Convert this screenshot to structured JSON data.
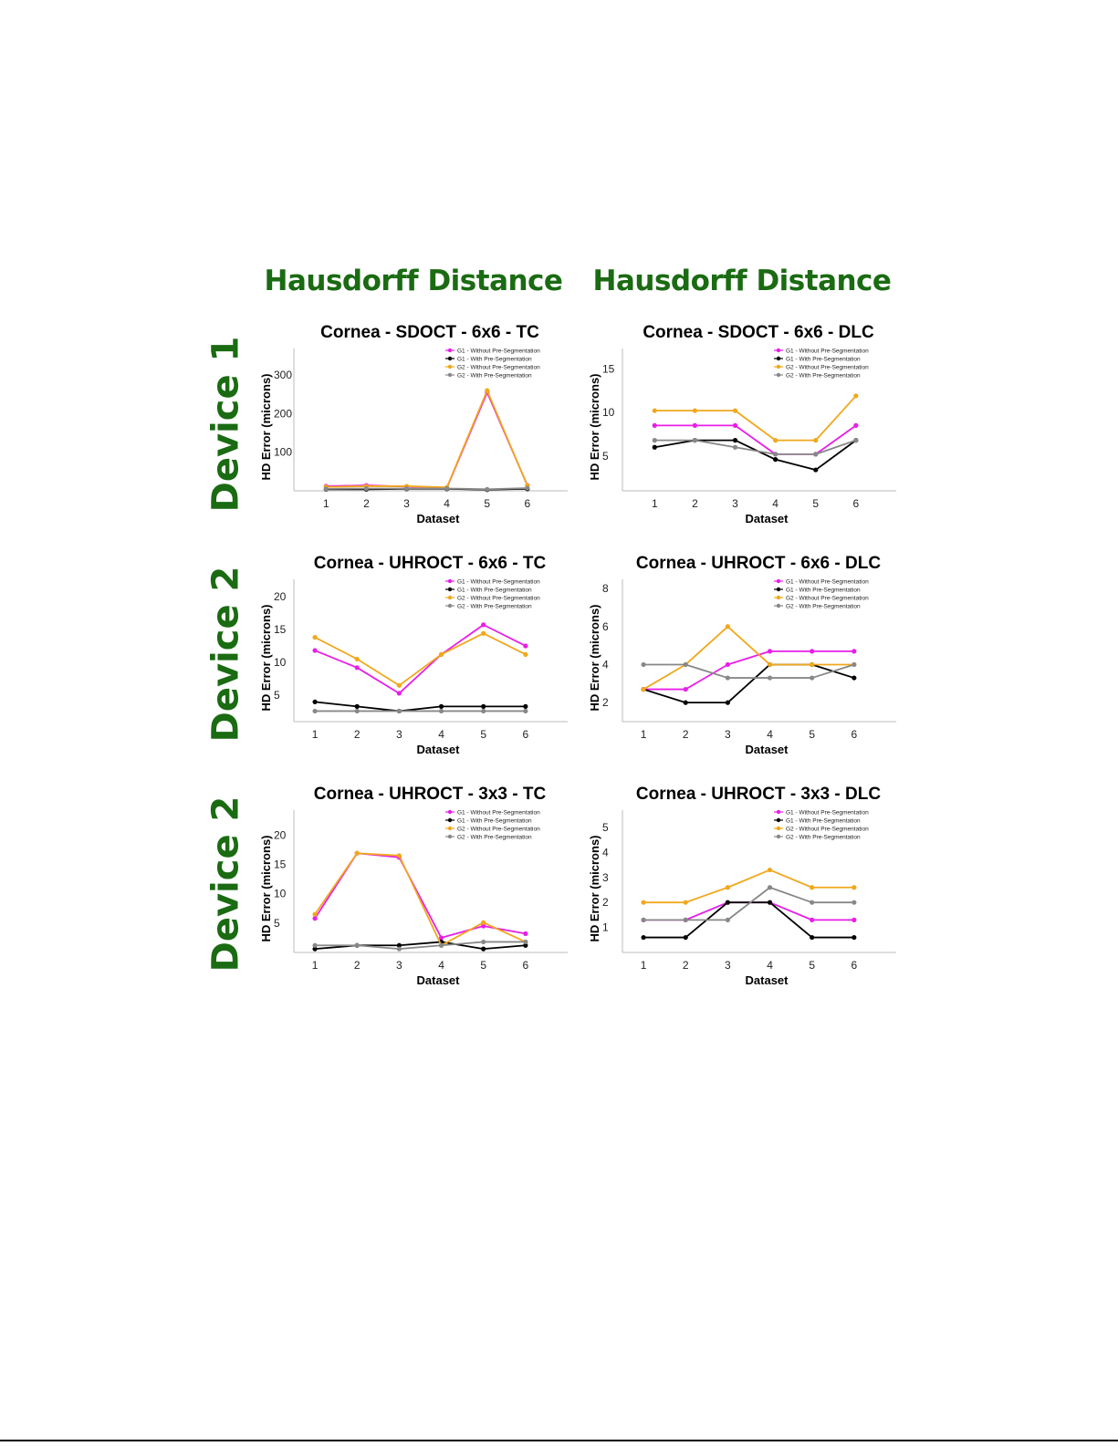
{
  "headings": {
    "left": "Hausdorff Distance",
    "right": "Hausdorff Distance"
  },
  "row_labels": [
    "Device 1",
    "Device 2",
    "Device 2"
  ],
  "colors": {
    "heading": "#1a6b12",
    "g1_without": "#e81ee8",
    "g1_with": "#000000",
    "g2_without": "#f0a81c",
    "g2_with": "#888888"
  },
  "chart_data": [
    {
      "type": "line",
      "title": "Cornea - SDOCT - 6x6 - TC",
      "xlabel": "Dataset",
      "ylabel": "HD Error (microns)",
      "categories": [
        "1",
        "2",
        "3",
        "4",
        "5",
        "6"
      ],
      "xlim": [
        0.2,
        7.0
      ],
      "ylim": [
        0,
        350
      ],
      "yticks": [
        100,
        200,
        300
      ],
      "legend": "top-right",
      "series": [
        {
          "name": "G1 - Without Pre-Segmentation",
          "values": [
            12,
            14,
            11,
            8,
            255,
            14
          ]
        },
        {
          "name": "G1 - With Pre-Segmentation",
          "values": [
            4,
            4,
            5,
            5,
            3,
            5
          ]
        },
        {
          "name": "G2 - Without Pre-Segmentation",
          "values": [
            10,
            12,
            12,
            9,
            260,
            13
          ]
        },
        {
          "name": "G2 - With Pre-Segmentation",
          "values": [
            5,
            6,
            6,
            6,
            4,
            7
          ]
        }
      ]
    },
    {
      "type": "line",
      "title": "Cornea - SDOCT - 6x6 - DLC",
      "xlabel": "Dataset",
      "ylabel": "HD Error (microns)",
      "categories": [
        "1",
        "2",
        "3",
        "4",
        "5",
        "6"
      ],
      "xlim": [
        0.2,
        7.0
      ],
      "ylim": [
        1,
        16.5
      ],
      "yticks": [
        5,
        10,
        15
      ],
      "legend": "top-right",
      "series": [
        {
          "name": "G1 - Without Pre-Segmentation",
          "values": [
            8.5,
            8.5,
            8.5,
            5.2,
            5.2,
            8.5
          ]
        },
        {
          "name": "G1 - With Pre-Segmentation",
          "values": [
            6.0,
            6.8,
            6.8,
            4.6,
            3.4,
            6.8
          ]
        },
        {
          "name": "G2 - Without Pre-Segmentation",
          "values": [
            10.2,
            10.2,
            10.2,
            6.8,
            6.8,
            11.9
          ]
        },
        {
          "name": "G2 - With Pre-Segmentation",
          "values": [
            6.8,
            6.8,
            6.0,
            5.2,
            5.2,
            6.8
          ]
        }
      ]
    },
    {
      "type": "line",
      "title": "Cornea - UHROCT - 6x6 - TC",
      "xlabel": "Dataset",
      "ylabel": "HD Error (microns)",
      "categories": [
        "1",
        "2",
        "3",
        "4",
        "5",
        "6"
      ],
      "xlim": [
        0.5,
        7.0
      ],
      "ylim": [
        1,
        21.5
      ],
      "yticks": [
        5,
        10,
        15,
        20
      ],
      "legend": "top-right",
      "series": [
        {
          "name": "G1 - Without Pre-Segmentation",
          "values": [
            11.8,
            9.2,
            5.3,
            11.2,
            15.7,
            12.5
          ]
        },
        {
          "name": "G1 - With Pre-Segmentation",
          "values": [
            4.0,
            3.3,
            2.6,
            3.3,
            3.3,
            3.3
          ]
        },
        {
          "name": "G2 - Without Pre-Segmentation",
          "values": [
            13.8,
            10.5,
            6.5,
            11.2,
            14.4,
            11.2
          ]
        },
        {
          "name": "G2 - With Pre-Segmentation",
          "values": [
            2.6,
            2.6,
            2.6,
            2.6,
            2.6,
            2.6
          ]
        }
      ]
    },
    {
      "type": "line",
      "title": "Cornea - UHROCT - 6x6 - DLC",
      "xlabel": "Dataset",
      "ylabel": "HD Error (microns)",
      "categories": [
        "1",
        "2",
        "3",
        "4",
        "5",
        "6"
      ],
      "xlim": [
        0.5,
        7.0
      ],
      "ylim": [
        1,
        8.1
      ],
      "yticks": [
        2,
        4,
        6,
        8
      ],
      "legend": "top-right",
      "series": [
        {
          "name": "G1 - Without Pre-Segmentation",
          "values": [
            2.7,
            2.7,
            4.0,
            4.7,
            4.7,
            4.7
          ]
        },
        {
          "name": "G1 - With Pre-Segmentation",
          "values": [
            2.7,
            2.0,
            2.0,
            4.0,
            4.0,
            3.3
          ]
        },
        {
          "name": "G2 - Without Pre-Segmentation",
          "values": [
            2.7,
            4.0,
            6.0,
            4.0,
            4.0,
            4.0
          ]
        },
        {
          "name": "G2 - With Pre-Segmentation",
          "values": [
            4.0,
            4.0,
            3.3,
            3.3,
            3.3,
            4.0
          ]
        }
      ]
    },
    {
      "type": "line",
      "title": "Cornea - UHROCT - 3x3 - TC",
      "xlabel": "Dataset",
      "ylabel": "HD Error (microns)",
      "categories": [
        "1",
        "2",
        "3",
        "4",
        "5",
        "6"
      ],
      "xlim": [
        0.5,
        7.0
      ],
      "ylim": [
        0,
        23
      ],
      "yticks": [
        5,
        10,
        15,
        20
      ],
      "legend": "top-right",
      "series": [
        {
          "name": "G1 - Without Pre-Segmentation",
          "values": [
            5.8,
            16.9,
            16.2,
            2.5,
            4.5,
            3.2
          ]
        },
        {
          "name": "G1 - With Pre-Segmentation",
          "values": [
            0.6,
            1.2,
            1.2,
            1.8,
            0.6,
            1.2
          ]
        },
        {
          "name": "G2 - Without Pre-Segmentation",
          "values": [
            6.5,
            16.9,
            16.5,
            1.2,
            5.1,
            1.8
          ]
        },
        {
          "name": "G2 - With Pre-Segmentation",
          "values": [
            1.2,
            1.2,
            0.6,
            1.2,
            1.8,
            1.8
          ]
        }
      ]
    },
    {
      "type": "line",
      "title": "Cornea - UHROCT - 3x3 - DLC",
      "xlabel": "Dataset",
      "ylabel": "HD Error (microns)",
      "categories": [
        "1",
        "2",
        "3",
        "4",
        "5",
        "6"
      ],
      "xlim": [
        0.5,
        7.0
      ],
      "ylim": [
        0,
        5.4
      ],
      "yticks": [
        1,
        2,
        3,
        4,
        5
      ],
      "legend": "top-right",
      "series": [
        {
          "name": "G1 - Without Pre-Segmentation",
          "values": [
            1.3,
            1.3,
            2.0,
            2.0,
            1.3,
            1.3
          ]
        },
        {
          "name": "G1 - With Pre-Segmentation",
          "values": [
            0.6,
            0.6,
            2.0,
            2.0,
            0.6,
            0.6
          ]
        },
        {
          "name": "G2 - Without Pre-Segmentation",
          "values": [
            2.0,
            2.0,
            2.6,
            3.3,
            2.6,
            2.6
          ]
        },
        {
          "name": "G2 - With Pre-Segmentation",
          "values": [
            1.3,
            1.3,
            1.3,
            2.6,
            2.0,
            2.0
          ]
        }
      ]
    }
  ]
}
